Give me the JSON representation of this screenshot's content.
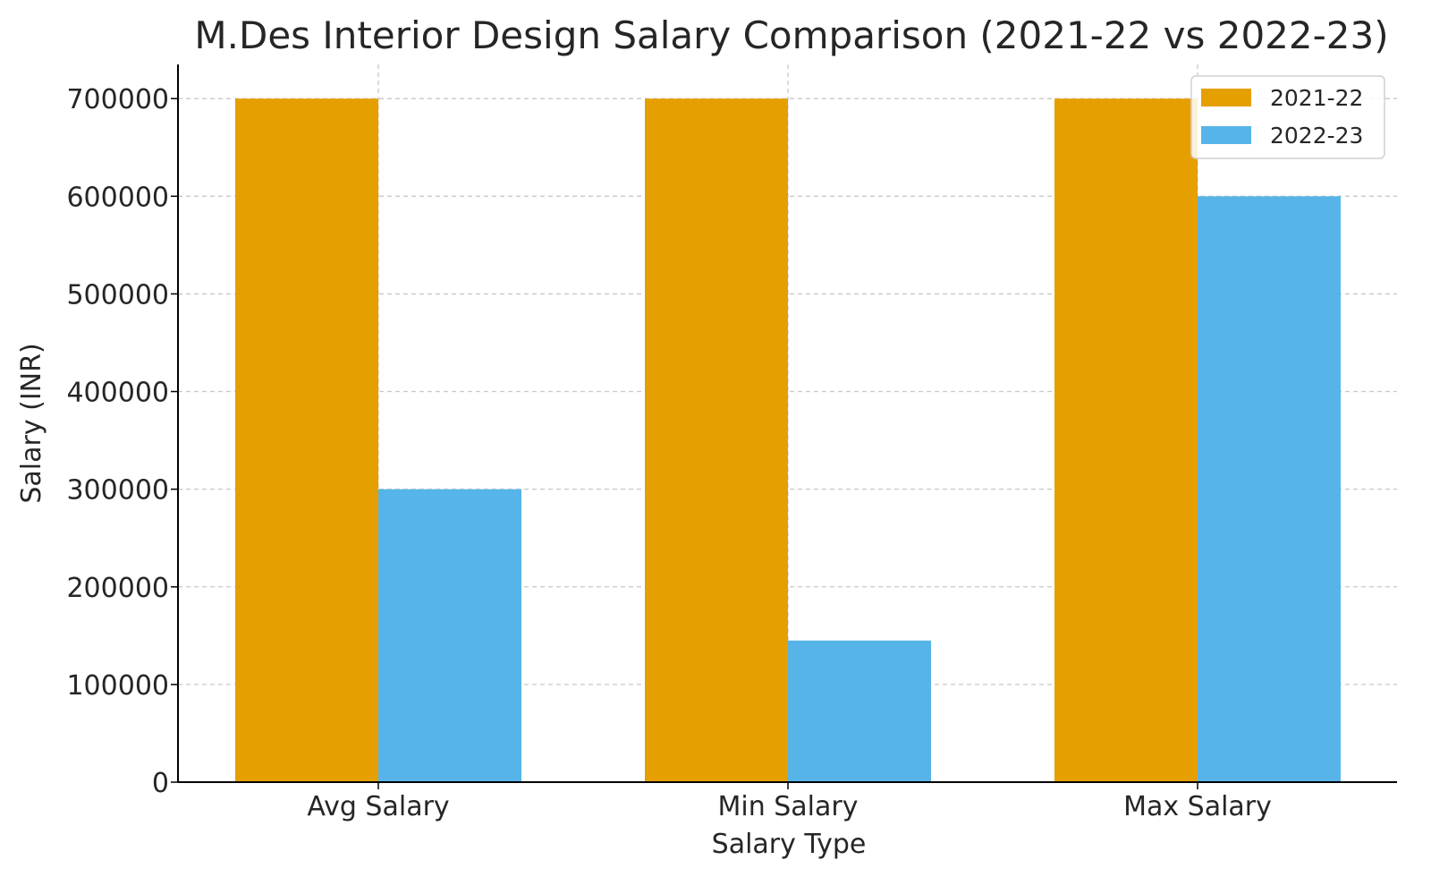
{
  "chart_data": {
    "type": "bar",
    "title": "M.Des Interior Design Salary Comparison (2021-22 vs 2022-23)",
    "xlabel": "Salary Type",
    "ylabel": "Salary (INR)",
    "categories": [
      "Avg Salary",
      "Min Salary",
      "Max Salary"
    ],
    "series": [
      {
        "name": "2021-22",
        "color": "#E69F00",
        "values": [
          700000,
          700000,
          700000
        ]
      },
      {
        "name": "2022-23",
        "color": "#56B4E9",
        "values": [
          300000,
          145000,
          600000
        ]
      }
    ],
    "ylim": [
      0,
      735000
    ],
    "yticks": [
      0,
      100000,
      200000,
      300000,
      400000,
      500000,
      600000,
      700000
    ],
    "ytick_labels": [
      "0",
      "100000",
      "200000",
      "300000",
      "400000",
      "500000",
      "600000",
      "700000"
    ],
    "grid": true,
    "legend_position": "top-right"
  }
}
